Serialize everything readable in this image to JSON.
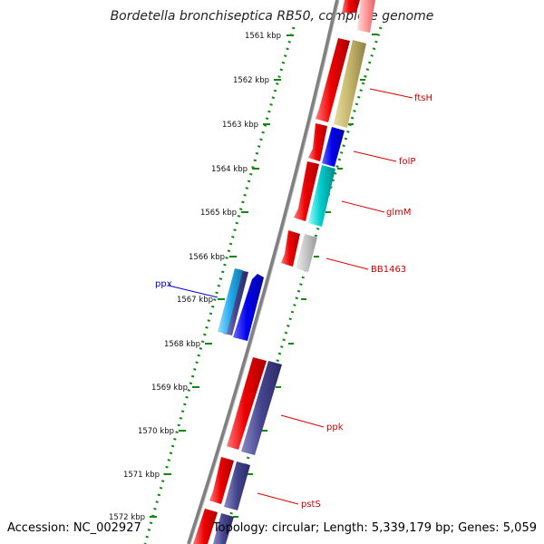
{
  "map": {
    "title": "Bordetella bronchiseptica RB50, complete genome",
    "accession": "Accession: NC_002927",
    "summary": "Topology: circular; Length: 5,339,179 bp; Genes: 5,059"
  },
  "ticks": [
    "1561 kbp",
    "1562 kbp",
    "1563 kbp",
    "1564 kbp",
    "1565 kbp",
    "1566 kbp",
    "1567 kbp",
    "1568 kbp",
    "1569 kbp",
    "1570 kbp",
    "1571 kbp",
    "1572 kbp"
  ],
  "gene_labels": [
    {
      "id": "ftsH",
      "text": "ftsH",
      "color": "#cc0000"
    },
    {
      "id": "folP",
      "text": "folP",
      "color": "#cc0000"
    },
    {
      "id": "glmM",
      "text": "glmM",
      "color": "#cc0000"
    },
    {
      "id": "BB1463",
      "text": "BB1463",
      "color": "#cc0000"
    },
    {
      "id": "ppx",
      "text": "ppx",
      "color": "#0000cc"
    },
    {
      "id": "ppk",
      "text": "ppk",
      "color": "#cc0000"
    },
    {
      "id": "pstS",
      "text": "pstS",
      "color": "#cc0000"
    }
  ],
  "colors": {
    "backbone": "#808080",
    "ticks": "#118811",
    "cds_forward": "#ee0000",
    "cds_reverse": "#0000ee"
  }
}
